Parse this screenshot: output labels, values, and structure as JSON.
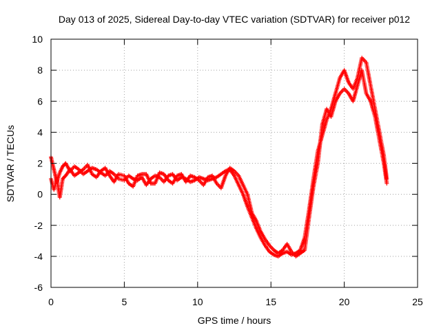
{
  "chart_data": {
    "type": "scatter",
    "title": "Day 013 of 2025, Sidereal Day-to-day VTEC variation (SDTVAR) for receiver p012",
    "xlabel": "GPS time / hours",
    "ylabel": "SDTVAR / TECUs",
    "xlim": [
      0,
      25
    ],
    "ylim": [
      -6,
      10
    ],
    "xticks": [
      0,
      5,
      10,
      15,
      20,
      25
    ],
    "yticks": [
      -6,
      -4,
      -2,
      0,
      2,
      4,
      6,
      8,
      10
    ],
    "grid": true,
    "marker": "+",
    "color": "#ff0000",
    "series": [
      {
        "name": "SDTVAR",
        "x": [
          0.0,
          0.2,
          0.4,
          0.6,
          0.8,
          1.0,
          1.3,
          1.6,
          1.9,
          2.2,
          2.5,
          2.8,
          3.1,
          3.4,
          3.7,
          4.0,
          4.3,
          4.6,
          5.0,
          5.3,
          5.6,
          5.9,
          6.2,
          6.5,
          6.8,
          7.1,
          7.4,
          7.7,
          8.0,
          8.3,
          8.6,
          8.9,
          9.2,
          9.5,
          9.8,
          10.1,
          10.4,
          10.7,
          11.0,
          11.3,
          11.6,
          11.9,
          12.2,
          12.5,
          12.8,
          13.1,
          13.4,
          13.7,
          14.0,
          14.3,
          14.6,
          14.9,
          15.2,
          15.5,
          15.8,
          16.1,
          16.4,
          16.7,
          17.0,
          17.3,
          17.6,
          17.9,
          18.2,
          18.5,
          18.8,
          19.1,
          19.4,
          19.7,
          20.0,
          20.3,
          20.6,
          20.9,
          21.2,
          21.5,
          21.8,
          22.1,
          22.4,
          22.7,
          22.9
        ],
        "y": [
          2.4,
          1.6,
          0.8,
          1.4,
          1.8,
          2.0,
          1.5,
          1.8,
          1.6,
          1.3,
          1.5,
          1.7,
          1.6,
          1.4,
          1.2,
          1.5,
          1.3,
          1.0,
          0.9,
          1.2,
          1.0,
          0.9,
          1.1,
          0.6,
          1.0,
          1.2,
          1.1,
          0.8,
          1.2,
          1.3,
          0.9,
          1.1,
          1.0,
          0.8,
          0.9,
          1.1,
          1.0,
          0.9,
          1.0,
          1.1,
          1.3,
          1.5,
          1.6,
          1.2,
          0.6,
          0.0,
          -0.8,
          -1.5,
          -2.2,
          -2.8,
          -3.3,
          -3.7,
          -3.9,
          -4.0,
          -3.8,
          -3.7,
          -3.9,
          -3.8,
          -3.6,
          -2.8,
          -1.0,
          1.0,
          2.8,
          3.8,
          4.8,
          5.5,
          6.5,
          7.5,
          8.0,
          7.2,
          6.8,
          7.5,
          8.8,
          8.5,
          7.0,
          5.5,
          4.0,
          2.5,
          1.0
        ],
        "y2": [
          1.0,
          0.3,
          1.0,
          -0.2,
          1.0,
          1.2,
          1.6,
          1.2,
          1.4,
          1.6,
          1.9,
          1.3,
          1.1,
          1.5,
          1.7,
          1.2,
          0.8,
          1.3,
          1.2,
          0.7,
          0.5,
          1.2,
          1.3,
          1.3,
          0.7,
          0.7,
          1.4,
          1.3,
          0.9,
          0.7,
          1.2,
          1.3,
          0.8,
          1.2,
          1.1,
          0.9,
          0.6,
          1.1,
          1.2,
          0.7,
          0.4,
          1.2,
          1.7,
          1.5,
          1.2,
          0.6,
          0.0,
          -1.2,
          -1.7,
          -2.4,
          -2.9,
          -3.3,
          -3.6,
          -3.8,
          -3.6,
          -3.2,
          -3.7,
          -4.0,
          -3.8,
          -3.6,
          -1.5,
          0.5,
          2.0,
          4.5,
          5.5,
          5.0,
          6.0,
          6.5,
          6.8,
          6.5,
          6.0,
          7.0,
          8.0,
          6.5,
          6.0,
          5.0,
          3.5,
          2.0,
          0.7
        ]
      }
    ]
  }
}
